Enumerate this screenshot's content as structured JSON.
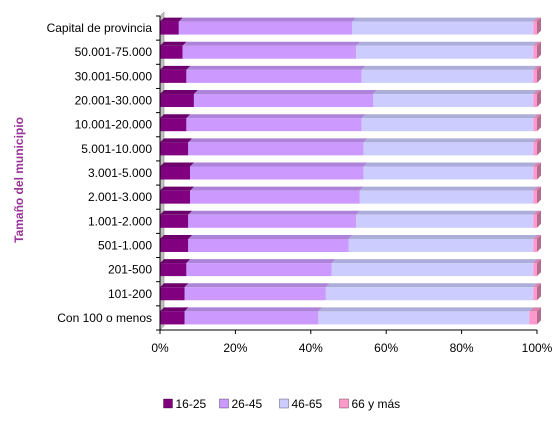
{
  "chart_data": {
    "type": "bar",
    "orientation": "horizontal",
    "stacked": "percent",
    "ylabel": "Tamaño del municipio",
    "categories": [
      "Capital de provincia",
      "50.001-75.000",
      "30.001-50.000",
      "20.001-30.000",
      "10.001-20.000",
      "5.001-10.000",
      "3.001-5.000",
      "2.001-3.000",
      "1.001-2.000",
      "501-1.000",
      "201-500",
      "101-200",
      "Con 100 o menos"
    ],
    "series": [
      {
        "name": "16-25",
        "color": "#800080",
        "values": [
          5,
          6,
          7,
          9,
          7,
          7.5,
          8,
          8,
          7.5,
          7.5,
          7,
          6.5,
          6.5
        ]
      },
      {
        "name": "26-45",
        "color": "#CC99FF",
        "values": [
          46,
          46,
          46.5,
          47.5,
          46.5,
          46.5,
          46,
          45,
          44.5,
          42.5,
          38.5,
          37.5,
          35.5
        ]
      },
      {
        "name": "46-65",
        "color": "#CCCCFF",
        "values": [
          48,
          47,
          45.5,
          42.5,
          45.5,
          45,
          45,
          46,
          47,
          49,
          53.5,
          55,
          56
        ]
      },
      {
        "name": "66 y más",
        "color": "#FF99CC",
        "values": [
          1,
          1,
          1,
          1,
          1,
          1,
          1,
          1,
          1,
          1,
          1,
          1,
          2
        ]
      }
    ],
    "xaxis": {
      "min": 0,
      "max": 100,
      "ticks": [
        "0%",
        "20%",
        "40%",
        "60%",
        "80%",
        "100%"
      ]
    },
    "legend_position": "bottom",
    "grid": false
  }
}
